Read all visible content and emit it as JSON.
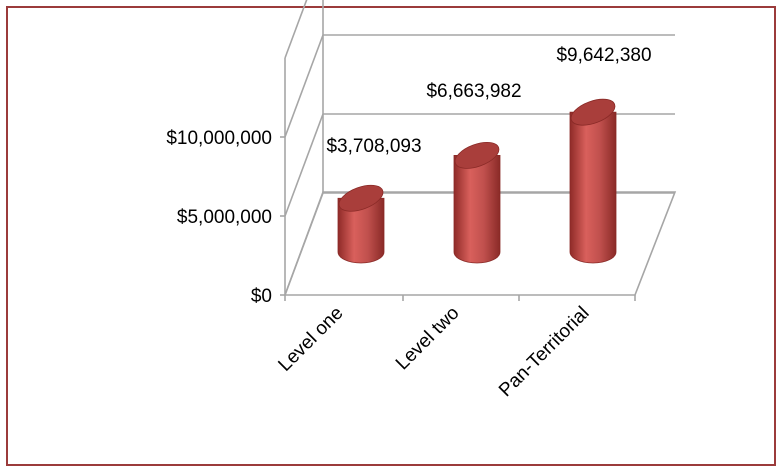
{
  "chart_data": {
    "type": "bar",
    "style": "3d-cylinder",
    "categories": [
      "Level one",
      "Level two",
      "Pan-Territorial"
    ],
    "values": [
      3708093,
      6663982,
      9642380
    ],
    "data_labels": [
      "$3,708,093",
      "$6,663,982",
      "$9,642,380"
    ],
    "yticks": [
      0,
      5000000,
      10000000
    ],
    "ytick_labels": [
      "$0",
      "$5,000,000",
      "$10,000,000"
    ],
    "ylim": [
      0,
      15000000
    ],
    "grid": true,
    "legend": "none",
    "bar_color": "#c0504d",
    "bar_top_color": "#a93e3b"
  }
}
